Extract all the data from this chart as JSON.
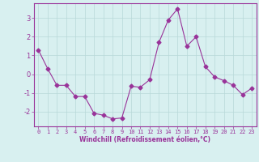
{
  "x": [
    0,
    1,
    2,
    3,
    4,
    5,
    6,
    7,
    8,
    9,
    10,
    11,
    12,
    13,
    14,
    15,
    16,
    17,
    18,
    19,
    20,
    21,
    22,
    23
  ],
  "y": [
    1.3,
    0.3,
    -0.6,
    -0.6,
    -1.2,
    -1.2,
    -2.1,
    -2.2,
    -2.4,
    -2.35,
    -0.65,
    -0.7,
    -0.3,
    1.7,
    2.9,
    3.5,
    1.5,
    2.0,
    0.4,
    -0.15,
    -0.35,
    -0.6,
    -1.1,
    -0.75
  ],
  "line_color": "#993399",
  "marker": "D",
  "marker_size": 2.5,
  "bg_color": "#d8f0f0",
  "grid_color": "#b8d8d8",
  "xlabel": "Windchill (Refroidissement éolien,°C)",
  "ylim": [
    -2.8,
    3.8
  ],
  "xlim": [
    -0.5,
    23.5
  ],
  "yticks": [
    -2,
    -1,
    0,
    1,
    2,
    3
  ],
  "xticks": [
    0,
    1,
    2,
    3,
    4,
    5,
    6,
    7,
    8,
    9,
    10,
    11,
    12,
    13,
    14,
    15,
    16,
    17,
    18,
    19,
    20,
    21,
    22,
    23
  ],
  "xlabel_color": "#993399",
  "tick_color": "#993399",
  "axis_color": "#993399",
  "tick_fontsize": 5.0,
  "xlabel_fontsize": 5.5
}
